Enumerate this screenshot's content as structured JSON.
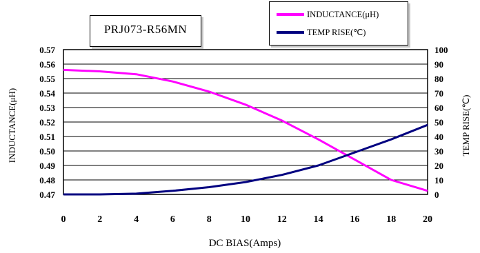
{
  "chart_data": {
    "type": "line",
    "title": "PRJ073-R56MN",
    "xlabel": "DC BIAS(Amps)",
    "ylabel_left": "INDUCTANCE(μH)",
    "ylabel_right": "TEMP RISE(℃)",
    "xlim": [
      0,
      20
    ],
    "ylim_left": [
      0.47,
      0.57
    ],
    "ylim_right": [
      0,
      100
    ],
    "x_ticks": [
      "0",
      "2",
      "4",
      "6",
      "8",
      "10",
      "12",
      "14",
      "16",
      "18",
      "20"
    ],
    "y_left_ticks": [
      "0.47",
      "0.48",
      "0.49",
      "0.50",
      "0.51",
      "0.52",
      "0.53",
      "0.54",
      "0.55",
      "0.56",
      "0.57"
    ],
    "y_right_ticks": [
      "0",
      "10",
      "20",
      "30",
      "40",
      "50",
      "60",
      "70",
      "80",
      "90",
      "100"
    ],
    "grid": "horizontal",
    "legend_position": "top-right",
    "series": [
      {
        "name": "INDUCTANCE(μH)",
        "axis": "left",
        "color": "#ff00ff",
        "x": [
          0,
          2,
          4,
          6,
          8,
          10,
          12,
          14,
          16,
          18,
          20
        ],
        "y": [
          0.556,
          0.555,
          0.553,
          0.548,
          0.541,
          0.532,
          0.521,
          0.508,
          0.494,
          0.48,
          0.4725
        ]
      },
      {
        "name": "TEMP RISE(℃)",
        "axis": "right",
        "color": "#000080",
        "x": [
          0,
          2,
          4,
          6,
          8,
          10,
          12,
          14,
          16,
          18,
          20
        ],
        "y": [
          0,
          0,
          0.5,
          2.5,
          5,
          8.5,
          13.5,
          20,
          29,
          38,
          48
        ]
      }
    ]
  }
}
